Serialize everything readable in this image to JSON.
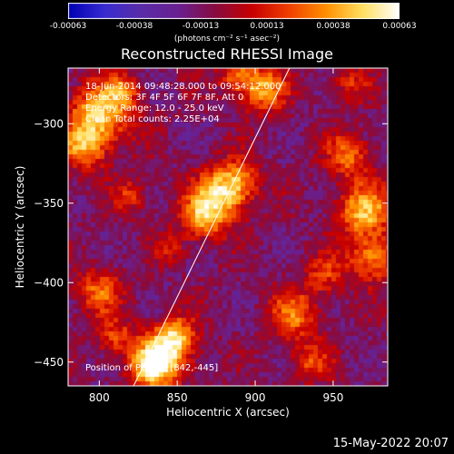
{
  "colorbar": {
    "ticks": [
      "-0.00063",
      "-0.00038",
      "-0.00013",
      "0.00013",
      "0.00038",
      "0.00063"
    ],
    "units_label": "(photons cm⁻² s⁻¹ asec⁻²)",
    "min": -0.00063,
    "max": 0.00063
  },
  "chart_data": {
    "type": "heatmap",
    "title": "Reconstructed RHESSI Image",
    "xlabel": "Heliocentric X (arcsec)",
    "ylabel": "Heliocentric Y (arcsec)",
    "xlim": [
      780,
      985
    ],
    "ylim": [
      -465,
      -265
    ],
    "xticks": [
      800,
      850,
      900,
      950
    ],
    "yticks": [
      -300,
      -350,
      -400,
      -450
    ],
    "colormap": [
      "#0000b4",
      "#3a2cd0",
      "#5a2ca8",
      "#6a2090",
      "#880c40",
      "#c80000",
      "#f04000",
      "#ff9000",
      "#ffe060",
      "#ffffff"
    ],
    "info_lines": [
      "18-Jun-2014 09:48:28.000 to 09:54:12.000",
      "Detectors: 3F 4F 5F 6F 7F 8F, Att 0",
      "Energy Range: 12.0 - 25.0 keV",
      "Clean      Total counts: 2.25E+04"
    ],
    "peak_label": "Position of Peak = [842,-445]",
    "peak": [
      842,
      -445
    ],
    "limb_line": {
      "from": [
        822,
        -465
      ],
      "to": [
        922,
        -265
      ]
    },
    "sources": [
      {
        "x": 842,
        "y": -445,
        "amp": 0.00063,
        "r": 12
      },
      {
        "x": 832,
        "y": -455,
        "amp": 0.00045,
        "r": 9
      },
      {
        "x": 850,
        "y": -432,
        "amp": 0.00035,
        "r": 8
      },
      {
        "x": 800,
        "y": -295,
        "amp": 0.00058,
        "r": 14
      },
      {
        "x": 790,
        "y": -315,
        "amp": 0.0004,
        "r": 10
      },
      {
        "x": 815,
        "y": -280,
        "amp": 0.0003,
        "r": 8
      },
      {
        "x": 878,
        "y": -345,
        "amp": 0.00058,
        "r": 12
      },
      {
        "x": 865,
        "y": -360,
        "amp": 0.00042,
        "r": 10
      },
      {
        "x": 890,
        "y": -335,
        "amp": 0.00032,
        "r": 9
      },
      {
        "x": 905,
        "y": -278,
        "amp": 0.0005,
        "r": 10
      },
      {
        "x": 888,
        "y": -270,
        "amp": 0.00038,
        "r": 8
      },
      {
        "x": 970,
        "y": -355,
        "amp": 0.00055,
        "r": 12
      },
      {
        "x": 960,
        "y": -320,
        "amp": 0.0004,
        "r": 10
      },
      {
        "x": 975,
        "y": -385,
        "amp": 0.00045,
        "r": 10
      },
      {
        "x": 945,
        "y": -395,
        "amp": 0.0003,
        "r": 9
      },
      {
        "x": 925,
        "y": -420,
        "amp": 0.0004,
        "r": 11
      },
      {
        "x": 935,
        "y": -450,
        "amp": 0.0003,
        "r": 9
      },
      {
        "x": 800,
        "y": -405,
        "amp": 0.00038,
        "r": 10
      },
      {
        "x": 810,
        "y": -435,
        "amp": 0.0003,
        "r": 9
      },
      {
        "x": 820,
        "y": -345,
        "amp": 0.00028,
        "r": 8
      },
      {
        "x": 845,
        "y": -380,
        "amp": 0.0002,
        "r": 7
      },
      {
        "x": 960,
        "y": -275,
        "amp": 0.00025,
        "r": 9
      }
    ]
  },
  "footer": {
    "timestamp": "15-May-2022 20:07"
  }
}
